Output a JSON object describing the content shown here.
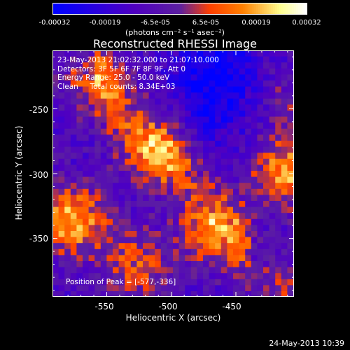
{
  "colorbar": {
    "tick_labels": [
      "-0.00032",
      "-0.00019",
      "-6.5e-05",
      "6.5e-05",
      "0.00019",
      "0.00032"
    ],
    "unit_label": "(photons cm⁻² s⁻¹ asec⁻²)",
    "range": [
      -0.00032,
      0.00032
    ]
  },
  "chart_data": {
    "type": "heatmap",
    "title": "Reconstructed RHESSI Image",
    "xlabel": "Heliocentric X (arcsec)",
    "ylabel": "Heliocentric Y (arcsec)",
    "xlim": [
      -592,
      -405
    ],
    "ylim": [
      -395,
      -205
    ],
    "x_ticks": [
      -550,
      -500,
      -450
    ],
    "y_ticks": [
      -250,
      -300,
      -350
    ],
    "x_tick_labels": [
      "-550",
      "-500",
      "-450"
    ],
    "y_tick_labels": [
      "-250",
      "-300",
      "-350"
    ],
    "colormap": [
      "#0000ff",
      "#5000c0",
      "#5c20a0",
      "#ff4000",
      "#ff8000",
      "#ffff90",
      "#ffffff"
    ],
    "peak_position": [
      -577,
      -336
    ],
    "sources": [
      {
        "x": -577,
        "y": -336,
        "value": 0.0003
      },
      {
        "x": -415,
        "y": -300,
        "value": 0.00028
      },
      {
        "x": -512,
        "y": -283,
        "value": 0.00024
      },
      {
        "x": -560,
        "y": -230,
        "value": 0.00018
      },
      {
        "x": -470,
        "y": -345,
        "value": 0.0002
      },
      {
        "x": -530,
        "y": -370,
        "value": 0.00018
      },
      {
        "x": -420,
        "y": -390,
        "value": 0.00012
      },
      {
        "x": -410,
        "y": -245,
        "value": 0.0001
      }
    ],
    "negative_region": {
      "x": -470,
      "y": -225,
      "value": -0.00022
    }
  },
  "annotations": {
    "time_range": "23-May-2013 21:02:32.000 to 21:07:10.000",
    "detectors": "Detectors: 3F 5F 6F 7F 8F 9F, Att 0",
    "energy_range": "Energy Range: 25.0 - 50.0 keV",
    "clean_counts": "Clean     Total counts: 8.34E+03",
    "peak_position": "Position of Peak = [-577,-336]"
  },
  "footer": {
    "timestamp": "24-May-2013 10:39"
  }
}
